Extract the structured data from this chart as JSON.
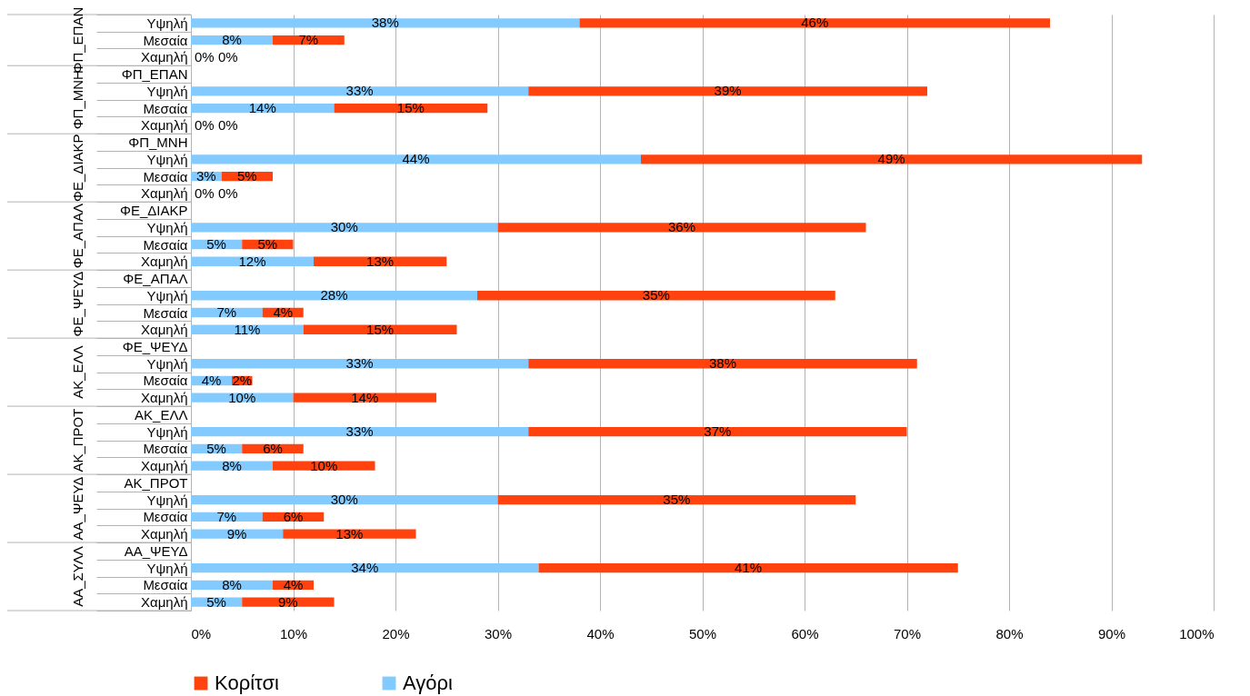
{
  "chart_data": {
    "type": "bar",
    "orientation": "horizontal",
    "stacked": true,
    "categories": [
      "Υψηλή",
      "Μεσαία",
      "Χαμηλή",
      "ΦΠ_ΕΠΑΝ",
      "Υψηλή",
      "Μεσαία",
      "Χαμηλή",
      "ΦΠ_ΜΝΗ",
      "Υψηλή",
      "Μεσαία",
      "Χαμηλή",
      "ΦΕ_ΔΙΑΚΡ",
      "Υψηλή",
      "Μεσαία",
      "Χαμηλή",
      "ΦΕ_ΑΠΑΛ",
      "Υψηλή",
      "Μεσαία",
      "Χαμηλή",
      "ΦΕ_ΨΕΥΔ",
      "Υψηλή",
      "Μεσαία",
      "Χαμηλή",
      "ΑΚ_ΕΛΛ",
      "Υψηλή",
      "Μεσαία",
      "Χαμηλή",
      "ΑΚ_ΠΡΟΤ",
      "Υψηλή",
      "Μεσαία",
      "Χαμηλή",
      "ΑΑ_ΨΕΥΔ",
      "Υψηλή",
      "Μεσαία",
      "Χαμηλή"
    ],
    "series": [
      {
        "name": "Αγόρι",
        "color": "#83caff",
        "values": [
          38,
          8,
          0,
          null,
          33,
          14,
          0,
          null,
          44,
          3,
          0,
          null,
          30,
          5,
          12,
          null,
          28,
          7,
          11,
          null,
          33,
          4,
          10,
          null,
          33,
          5,
          8,
          null,
          30,
          7,
          9,
          null,
          34,
          8,
          5
        ],
        "value_labels": [
          "38%",
          "8%",
          "0%",
          null,
          "33%",
          "14%",
          "0%",
          null,
          "44%",
          "3%",
          "0%",
          null,
          "30%",
          "5%",
          "12%",
          null,
          "28%",
          "7%",
          "11%",
          null,
          "33%",
          "4%",
          "10%",
          null,
          "33%",
          "5%",
          "8%",
          null,
          "30%",
          "7%",
          "9%",
          null,
          "34%",
          "8%",
          "5%"
        ]
      },
      {
        "name": "Κορίτσι",
        "color": "#ff420e",
        "values": [
          46,
          7,
          0,
          null,
          39,
          15,
          0,
          null,
          49,
          5,
          0,
          null,
          36,
          5,
          13,
          null,
          35,
          4,
          15,
          null,
          38,
          2,
          14,
          null,
          37,
          6,
          10,
          null,
          35,
          6,
          13,
          null,
          41,
          4,
          9
        ],
        "value_labels": [
          "46%",
          "7%",
          "0%",
          null,
          "39%",
          "15%",
          "0%",
          null,
          "49%",
          "5%",
          "0%",
          null,
          "36%",
          "5%",
          "13%",
          null,
          "35%",
          "4%",
          "15%",
          null,
          "38%",
          "2%",
          "14%",
          null,
          "37%",
          "6%",
          "10%",
          null,
          "35%",
          "6%",
          "13%",
          null,
          "41%",
          "4%",
          "9%"
        ]
      }
    ],
    "annotations": [
      "ΦΠ_ΕΠΑΝ",
      "ΦΠ_ΜΝΗ",
      "ΦΕ_ΔΙΑΚΡ",
      "ΦΕ_ΑΠΑΛ",
      "ΦΕ_ΨΕΥΔ",
      "ΑΚ_ΕΛΛ",
      "ΑΚ_ΠΡΟΤ",
      "ΑΑ_ΨΕΥΔ",
      "ΑΑ_ΣΥΛΛ"
    ],
    "xlim": [
      0,
      100
    ],
    "xticks": [
      {
        "value": 0,
        "label": "0%"
      },
      {
        "value": 10,
        "label": "10%"
      },
      {
        "value": 20,
        "label": "20%"
      },
      {
        "value": 30,
        "label": "30%"
      },
      {
        "value": 40,
        "label": "40%"
      },
      {
        "value": 50,
        "label": "50%"
      },
      {
        "value": 60,
        "label": "60%"
      },
      {
        "value": 70,
        "label": "70%"
      },
      {
        "value": 80,
        "label": "80%"
      },
      {
        "value": 90,
        "label": "90%"
      },
      {
        "value": 100,
        "label": "100%"
      }
    ],
    "grid": "x",
    "legend": "bottom"
  }
}
